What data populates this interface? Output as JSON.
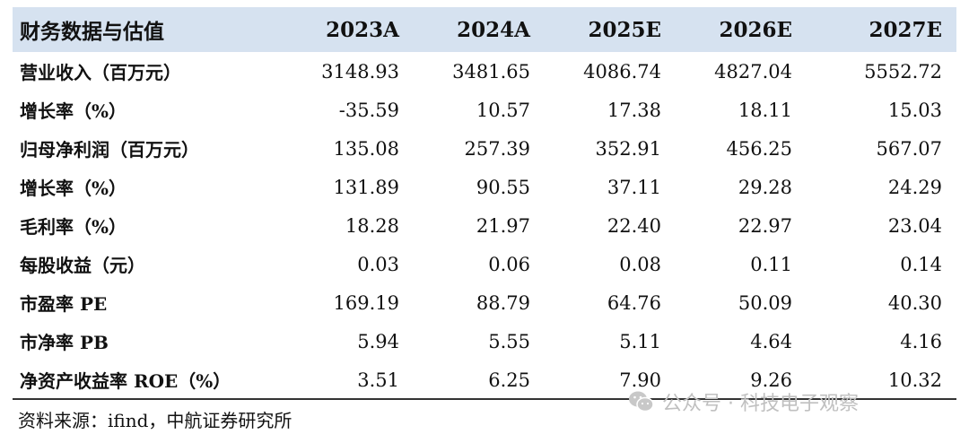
{
  "table": {
    "header": [
      "财务数据与估值",
      "2023A",
      "2024A",
      "2025E",
      "2026E",
      "2027E"
    ],
    "rows": [
      [
        "营业收入（百万元）",
        "3148.93",
        "3481.65",
        "4086.74",
        "4827.04",
        "5552.72"
      ],
      [
        "增长率（%）",
        "-35.59",
        "10.57",
        "17.38",
        "18.11",
        "15.03"
      ],
      [
        "归母净利润（百万元）",
        "135.08",
        "257.39",
        "352.91",
        "456.25",
        "567.07"
      ],
      [
        "增长率（%）",
        "131.89",
        "90.55",
        "37.11",
        "29.28",
        "24.29"
      ],
      [
        "毛利率（%）",
        "18.28",
        "21.97",
        "22.40",
        "22.97",
        "23.04"
      ],
      [
        "每股收益（元）",
        "0.03",
        "0.06",
        "0.08",
        "0.11",
        "0.14"
      ],
      [
        "市盈率 PE",
        "169.19",
        "88.79",
        "64.76",
        "50.09",
        "40.30"
      ],
      [
        "市净率 PB",
        "5.94",
        "5.55",
        "5.11",
        "4.64",
        "4.16"
      ],
      [
        "净资产收益率 ROE（%）",
        "3.51",
        "6.25",
        "7.90",
        "9.26",
        "10.32"
      ]
    ]
  },
  "source": "资料来源：ifind，中航证券研究所",
  "watermark": {
    "icon": "wechat-icon",
    "text": "公众号 · 科技电子观察"
  },
  "colors": {
    "header_bg": "#d6e2f0",
    "rule": "#333333",
    "watermark": "#c0c0c0"
  }
}
